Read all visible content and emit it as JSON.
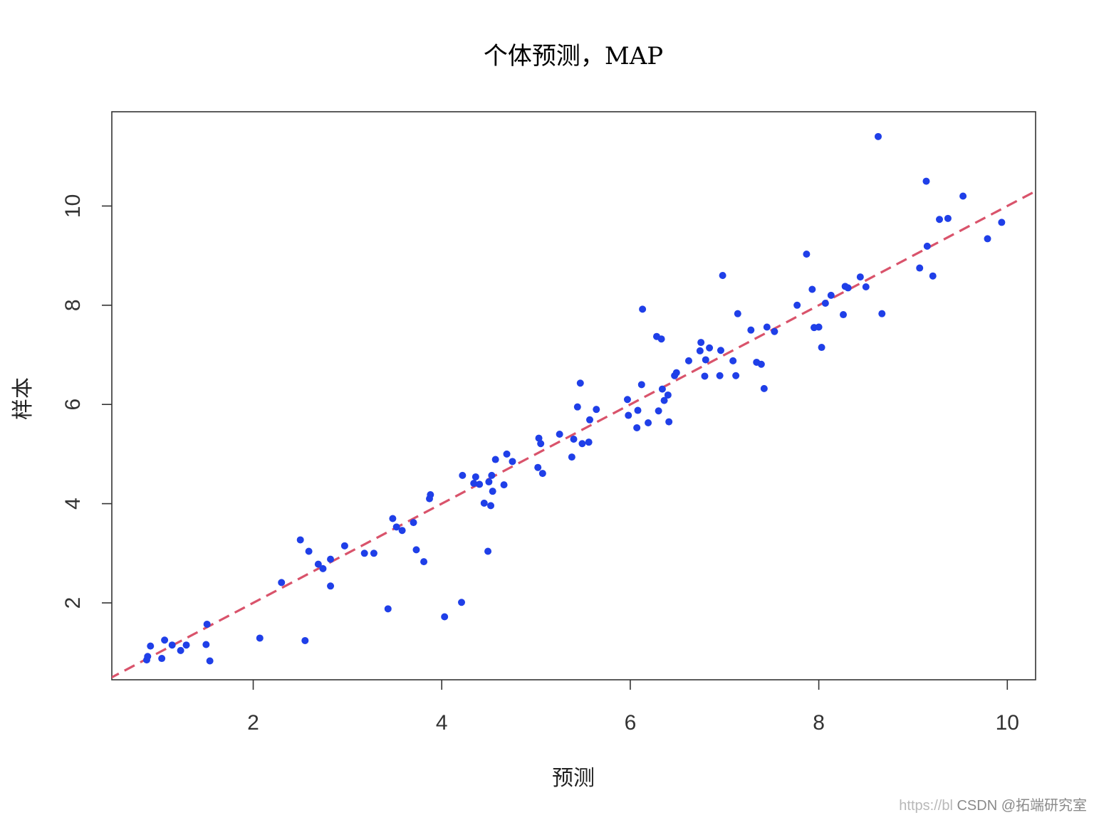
{
  "watermark": {
    "url": "https://bl",
    "source": "CSDN @拓端研究室"
  },
  "chart_data": {
    "type": "scatter",
    "title": "个体预测，MAP",
    "xlabel": "预测",
    "ylabel": "样本",
    "xlim": [
      0.5,
      10.3
    ],
    "ylim": [
      0.45,
      11.9
    ],
    "xticks": [
      2,
      4,
      6,
      8,
      10
    ],
    "yticks": [
      2,
      4,
      6,
      8,
      10
    ],
    "grid": false,
    "point_color": "#1f3fe8",
    "line_color": "#d9536b",
    "reference_line": {
      "slope": 1,
      "intercept": 0,
      "style": "dashed"
    },
    "points": [
      [
        0.87,
        0.85
      ],
      [
        0.88,
        0.92
      ],
      [
        0.91,
        1.13
      ],
      [
        1.03,
        0.88
      ],
      [
        1.06,
        1.25
      ],
      [
        1.14,
        1.15
      ],
      [
        1.23,
        1.04
      ],
      [
        1.29,
        1.15
      ],
      [
        1.5,
        1.16
      ],
      [
        1.51,
        1.57
      ],
      [
        1.54,
        0.83
      ],
      [
        2.07,
        1.29
      ],
      [
        2.3,
        2.41
      ],
      [
        2.5,
        3.27
      ],
      [
        2.55,
        1.24
      ],
      [
        2.59,
        3.04
      ],
      [
        2.69,
        2.78
      ],
      [
        2.74,
        2.69
      ],
      [
        2.82,
        2.88
      ],
      [
        2.82,
        2.34
      ],
      [
        2.97,
        3.15
      ],
      [
        3.18,
        3.0
      ],
      [
        3.28,
        3.0
      ],
      [
        3.43,
        1.88
      ],
      [
        3.48,
        3.7
      ],
      [
        3.52,
        3.53
      ],
      [
        3.58,
        3.46
      ],
      [
        3.7,
        3.62
      ],
      [
        3.73,
        3.07
      ],
      [
        3.81,
        2.83
      ],
      [
        3.87,
        4.1
      ],
      [
        3.88,
        4.18
      ],
      [
        4.03,
        1.72
      ],
      [
        4.21,
        2.01
      ],
      [
        4.22,
        4.57
      ],
      [
        4.34,
        4.41
      ],
      [
        4.36,
        4.54
      ],
      [
        4.4,
        4.39
      ],
      [
        4.45,
        4.01
      ],
      [
        4.49,
        3.04
      ],
      [
        4.5,
        4.44
      ],
      [
        4.52,
        3.96
      ],
      [
        4.53,
        4.57
      ],
      [
        4.54,
        4.25
      ],
      [
        4.57,
        4.89
      ],
      [
        4.66,
        4.38
      ],
      [
        4.69,
        5.0
      ],
      [
        4.75,
        4.85
      ],
      [
        5.02,
        4.73
      ],
      [
        5.03,
        5.32
      ],
      [
        5.05,
        5.21
      ],
      [
        5.07,
        4.61
      ],
      [
        5.25,
        5.4
      ],
      [
        5.38,
        4.94
      ],
      [
        5.4,
        5.3
      ],
      [
        5.44,
        5.95
      ],
      [
        5.47,
        6.43
      ],
      [
        5.49,
        5.21
      ],
      [
        5.56,
        5.24
      ],
      [
        5.57,
        5.69
      ],
      [
        5.64,
        5.9
      ],
      [
        5.97,
        6.1
      ],
      [
        5.98,
        5.78
      ],
      [
        6.07,
        5.53
      ],
      [
        6.08,
        5.88
      ],
      [
        6.12,
        6.4
      ],
      [
        6.13,
        7.92
      ],
      [
        6.19,
        5.63
      ],
      [
        6.28,
        7.37
      ],
      [
        6.3,
        5.87
      ],
      [
        6.33,
        7.32
      ],
      [
        6.34,
        6.31
      ],
      [
        6.36,
        6.08
      ],
      [
        6.4,
        6.19
      ],
      [
        6.41,
        5.65
      ],
      [
        6.47,
        6.58
      ],
      [
        6.49,
        6.64
      ],
      [
        6.62,
        6.88
      ],
      [
        6.74,
        7.08
      ],
      [
        6.75,
        7.25
      ],
      [
        6.79,
        6.57
      ],
      [
        6.8,
        6.9
      ],
      [
        6.84,
        7.14
      ],
      [
        6.95,
        6.58
      ],
      [
        6.96,
        7.09
      ],
      [
        6.98,
        8.6
      ],
      [
        7.09,
        6.88
      ],
      [
        7.12,
        6.58
      ],
      [
        7.14,
        7.83
      ],
      [
        7.28,
        7.5
      ],
      [
        7.34,
        6.85
      ],
      [
        7.39,
        6.81
      ],
      [
        7.42,
        6.32
      ],
      [
        7.45,
        7.56
      ],
      [
        7.53,
        7.47
      ],
      [
        7.77,
        8.0
      ],
      [
        7.87,
        9.03
      ],
      [
        7.93,
        8.32
      ],
      [
        7.95,
        7.55
      ],
      [
        8.0,
        7.56
      ],
      [
        8.03,
        7.15
      ],
      [
        8.07,
        8.04
      ],
      [
        8.13,
        8.2
      ],
      [
        8.26,
        7.81
      ],
      [
        8.28,
        8.38
      ],
      [
        8.31,
        8.35
      ],
      [
        8.44,
        8.57
      ],
      [
        8.5,
        8.37
      ],
      [
        8.63,
        11.4
      ],
      [
        8.67,
        7.83
      ],
      [
        9.07,
        8.75
      ],
      [
        9.14,
        10.5
      ],
      [
        9.15,
        9.19
      ],
      [
        9.21,
        8.59
      ],
      [
        9.28,
        9.73
      ],
      [
        9.37,
        9.75
      ],
      [
        9.53,
        10.2
      ],
      [
        9.79,
        9.34
      ],
      [
        9.94,
        9.67
      ]
    ]
  }
}
